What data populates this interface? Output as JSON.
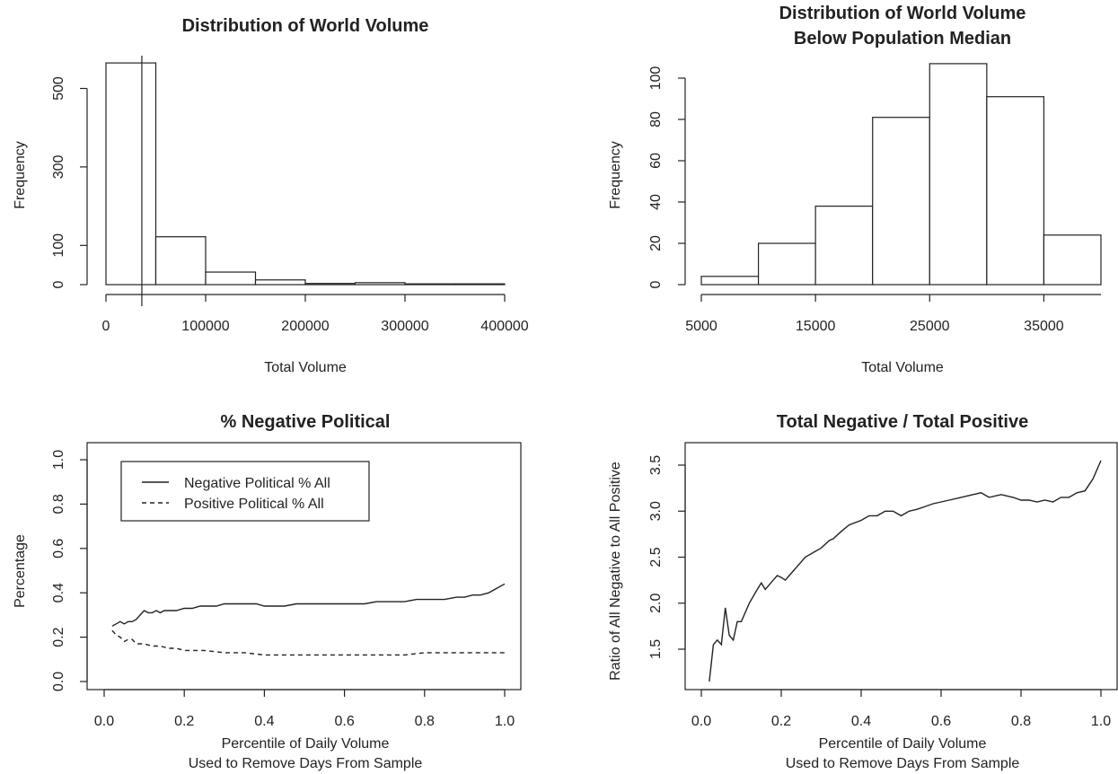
{
  "chart_data": [
    {
      "type": "bar",
      "title": "Distribution of World Volume",
      "xlabel": "Total Volume",
      "ylabel": "Frequency",
      "xlim": [
        0,
        400000
      ],
      "ylim": [
        0,
        570
      ],
      "x_ticks": [
        0,
        100000,
        200000,
        300000,
        400000
      ],
      "y_ticks": [
        0,
        100,
        300,
        500
      ],
      "bins": [
        {
          "start": 0,
          "end": 50000,
          "count": 565
        },
        {
          "start": 50000,
          "end": 100000,
          "count": 122
        },
        {
          "start": 100000,
          "end": 150000,
          "count": 32
        },
        {
          "start": 150000,
          "end": 200000,
          "count": 12
        },
        {
          "start": 200000,
          "end": 250000,
          "count": 3
        },
        {
          "start": 250000,
          "end": 300000,
          "count": 5
        },
        {
          "start": 300000,
          "end": 350000,
          "count": 2
        },
        {
          "start": 350000,
          "end": 400000,
          "count": 2
        }
      ],
      "vline_x": 36000
    },
    {
      "type": "bar",
      "title": "Distribution of World Volume",
      "subtitle": "Below Population Median",
      "xlabel": "Total Volume",
      "ylabel": "Frequency",
      "xlim": [
        5000,
        40000
      ],
      "ylim": [
        0,
        107
      ],
      "x_ticks": [
        5000,
        15000,
        25000,
        35000
      ],
      "y_ticks": [
        0,
        20,
        40,
        60,
        80,
        100
      ],
      "bins": [
        {
          "start": 5000,
          "end": 10000,
          "count": 4
        },
        {
          "start": 10000,
          "end": 15000,
          "count": 20
        },
        {
          "start": 15000,
          "end": 20000,
          "count": 38
        },
        {
          "start": 20000,
          "end": 25000,
          "count": 81
        },
        {
          "start": 25000,
          "end": 30000,
          "count": 107
        },
        {
          "start": 30000,
          "end": 35000,
          "count": 91
        },
        {
          "start": 35000,
          "end": 40000,
          "count": 24
        }
      ]
    },
    {
      "type": "line",
      "title": "% Negative Political",
      "xlabel": "Percentile of Daily Volume",
      "xlabel2": "Used to Remove Days From Sample",
      "ylabel": "Percentage",
      "xlim": [
        0,
        1
      ],
      "ylim": [
        0,
        1
      ],
      "x_ticks": [
        "0.0",
        "0.2",
        "0.4",
        "0.6",
        "0.8",
        "1.0"
      ],
      "y_ticks": [
        "0.0",
        "0.2",
        "0.4",
        "0.6",
        "0.8",
        "1.0"
      ],
      "legend": {
        "placement": "top-left",
        "entries": [
          "Negative Political % All",
          "Positive Political % All"
        ]
      },
      "series": [
        {
          "name": "Negative Political % All",
          "style": "solid",
          "x": [
            0.02,
            0.03,
            0.04,
            0.05,
            0.06,
            0.07,
            0.08,
            0.09,
            0.1,
            0.11,
            0.12,
            0.13,
            0.14,
            0.15,
            0.16,
            0.18,
            0.2,
            0.22,
            0.24,
            0.26,
            0.28,
            0.3,
            0.32,
            0.35,
            0.38,
            0.4,
            0.42,
            0.45,
            0.48,
            0.5,
            0.52,
            0.55,
            0.58,
            0.6,
            0.62,
            0.65,
            0.68,
            0.7,
            0.72,
            0.75,
            0.78,
            0.8,
            0.82,
            0.85,
            0.88,
            0.9,
            0.92,
            0.94,
            0.96,
            0.98,
            1.0
          ],
          "y": [
            0.25,
            0.26,
            0.27,
            0.26,
            0.27,
            0.27,
            0.28,
            0.3,
            0.32,
            0.31,
            0.31,
            0.32,
            0.31,
            0.32,
            0.32,
            0.32,
            0.33,
            0.33,
            0.34,
            0.34,
            0.34,
            0.35,
            0.35,
            0.35,
            0.35,
            0.34,
            0.34,
            0.34,
            0.35,
            0.35,
            0.35,
            0.35,
            0.35,
            0.35,
            0.35,
            0.35,
            0.36,
            0.36,
            0.36,
            0.36,
            0.37,
            0.37,
            0.37,
            0.37,
            0.38,
            0.38,
            0.39,
            0.39,
            0.4,
            0.42,
            0.44
          ]
        },
        {
          "name": "Positive Political % All",
          "style": "dashed",
          "x": [
            0.02,
            0.03,
            0.04,
            0.05,
            0.06,
            0.07,
            0.08,
            0.09,
            0.1,
            0.12,
            0.14,
            0.16,
            0.18,
            0.2,
            0.25,
            0.3,
            0.35,
            0.4,
            0.45,
            0.5,
            0.55,
            0.6,
            0.65,
            0.7,
            0.75,
            0.8,
            0.85,
            0.9,
            0.95,
            1.0
          ],
          "y": [
            0.23,
            0.21,
            0.2,
            0.18,
            0.19,
            0.19,
            0.17,
            0.17,
            0.17,
            0.16,
            0.16,
            0.15,
            0.15,
            0.14,
            0.14,
            0.13,
            0.13,
            0.12,
            0.12,
            0.12,
            0.12,
            0.12,
            0.12,
            0.12,
            0.12,
            0.13,
            0.13,
            0.13,
            0.13,
            0.13
          ]
        }
      ]
    },
    {
      "type": "line",
      "title": "Total Negative / Total Positive",
      "xlabel": "Percentile of Daily Volume",
      "xlabel2": "Used to Remove Days From Sample",
      "ylabel": "Ratio of All Negative to All Positive",
      "xlim": [
        0,
        1
      ],
      "ylim": [
        1.05,
        3.65
      ],
      "x_ticks": [
        "0.0",
        "0.2",
        "0.4",
        "0.6",
        "0.8",
        "1.0"
      ],
      "y_ticks": [
        "1.5",
        "2.0",
        "2.5",
        "3.0",
        "3.5"
      ],
      "series": [
        {
          "style": "solid",
          "x": [
            0.02,
            0.03,
            0.04,
            0.05,
            0.06,
            0.07,
            0.08,
            0.09,
            0.1,
            0.12,
            0.14,
            0.15,
            0.16,
            0.17,
            0.18,
            0.19,
            0.2,
            0.21,
            0.22,
            0.23,
            0.24,
            0.26,
            0.28,
            0.3,
            0.32,
            0.33,
            0.35,
            0.37,
            0.4,
            0.42,
            0.44,
            0.46,
            0.48,
            0.5,
            0.52,
            0.54,
            0.56,
            0.58,
            0.6,
            0.62,
            0.65,
            0.68,
            0.7,
            0.72,
            0.75,
            0.78,
            0.8,
            0.82,
            0.84,
            0.86,
            0.88,
            0.9,
            0.92,
            0.94,
            0.96,
            0.98,
            1.0
          ],
          "y": [
            1.15,
            1.55,
            1.6,
            1.55,
            1.95,
            1.65,
            1.6,
            1.8,
            1.8,
            2.0,
            2.15,
            2.22,
            2.15,
            2.2,
            2.25,
            2.3,
            2.28,
            2.25,
            2.3,
            2.35,
            2.4,
            2.5,
            2.55,
            2.6,
            2.68,
            2.7,
            2.78,
            2.85,
            2.9,
            2.95,
            2.95,
            3.0,
            3.0,
            2.95,
            3.0,
            3.02,
            3.05,
            3.08,
            3.1,
            3.12,
            3.15,
            3.18,
            3.2,
            3.15,
            3.18,
            3.15,
            3.12,
            3.12,
            3.1,
            3.12,
            3.1,
            3.15,
            3.15,
            3.2,
            3.22,
            3.35,
            3.55
          ]
        }
      ]
    }
  ]
}
